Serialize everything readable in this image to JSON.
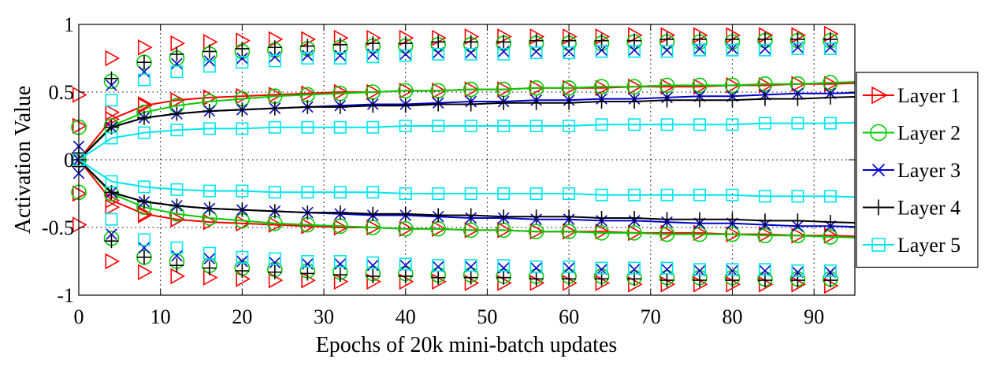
{
  "chart_data": {
    "type": "line",
    "xlabel": "Epochs of 20k mini-batch updates",
    "ylabel": "Activation Value",
    "xlim": [
      0,
      95
    ],
    "ylim": [
      -1,
      1
    ],
    "xticks": [
      0,
      10,
      20,
      30,
      40,
      50,
      60,
      70,
      80,
      90
    ],
    "yticks": [
      1,
      0.5,
      0,
      -0.5,
      -1
    ],
    "ytick_labels": [
      "1",
      "0.5",
      "0",
      "-0.5",
      "-1"
    ],
    "grid": true,
    "legend_position": "right",
    "marker_x": [
      0,
      4,
      8,
      12,
      16,
      20,
      24,
      28,
      32,
      36,
      40,
      44,
      48,
      52,
      56,
      60,
      64,
      68,
      72,
      76,
      80,
      84,
      88,
      92
    ],
    "series": [
      {
        "name": "Layer 1",
        "color": "#ff0000",
        "marker": "triangle-right",
        "mean_plus": [
          0.0,
          0.3,
          0.4,
          0.44,
          0.46,
          0.47,
          0.48,
          0.49,
          0.5,
          0.5,
          0.51,
          0.51,
          0.52,
          0.52,
          0.53,
          0.53,
          0.53,
          0.54,
          0.54,
          0.54,
          0.55,
          0.55,
          0.56,
          0.56
        ],
        "mean_minus": [
          0.0,
          -0.3,
          -0.4,
          -0.44,
          -0.46,
          -0.47,
          -0.48,
          -0.49,
          -0.5,
          -0.5,
          -0.51,
          -0.51,
          -0.52,
          -0.52,
          -0.53,
          -0.53,
          -0.53,
          -0.54,
          -0.54,
          -0.54,
          -0.55,
          -0.55,
          -0.56,
          -0.56
        ],
        "upper": [
          0.48,
          0.75,
          0.83,
          0.86,
          0.87,
          0.88,
          0.89,
          0.89,
          0.9,
          0.9,
          0.9,
          0.9,
          0.91,
          0.91,
          0.91,
          0.91,
          0.91,
          0.92,
          0.92,
          0.92,
          0.92,
          0.92,
          0.92,
          0.93
        ],
        "lower": [
          -0.48,
          -0.75,
          -0.83,
          -0.86,
          -0.87,
          -0.88,
          -0.89,
          -0.89,
          -0.9,
          -0.9,
          -0.9,
          -0.9,
          -0.91,
          -0.91,
          -0.91,
          -0.91,
          -0.91,
          -0.92,
          -0.92,
          -0.92,
          -0.92,
          -0.92,
          -0.92,
          -0.93
        ],
        "mid_plus": [
          0.25,
          0.35,
          0.41,
          0.44
        ],
        "mid_minus": [
          -0.25,
          -0.35,
          -0.41,
          -0.44
        ]
      },
      {
        "name": "Layer 2",
        "color": "#00cc00",
        "marker": "circle",
        "mean_plus": [
          0.0,
          0.25,
          0.35,
          0.4,
          0.43,
          0.45,
          0.47,
          0.48,
          0.49,
          0.5,
          0.51,
          0.51,
          0.52,
          0.52,
          0.53,
          0.53,
          0.54,
          0.54,
          0.55,
          0.55,
          0.55,
          0.56,
          0.56,
          0.57
        ],
        "mean_minus": [
          0.0,
          -0.25,
          -0.35,
          -0.4,
          -0.43,
          -0.45,
          -0.47,
          -0.48,
          -0.49,
          -0.5,
          -0.51,
          -0.51,
          -0.52,
          -0.52,
          -0.53,
          -0.53,
          -0.54,
          -0.54,
          -0.55,
          -0.55,
          -0.55,
          -0.56,
          -0.56,
          -0.57
        ],
        "upper": [
          0.24,
          0.58,
          0.72,
          0.75,
          0.78,
          0.8,
          0.81,
          0.82,
          0.83,
          0.84,
          0.84,
          0.85,
          0.85,
          0.86,
          0.86,
          0.86,
          0.86,
          0.87,
          0.87,
          0.87,
          0.87,
          0.88,
          0.88,
          0.88
        ],
        "lower": [
          -0.24,
          -0.58,
          -0.72,
          -0.75,
          -0.78,
          -0.8,
          -0.81,
          -0.82,
          -0.83,
          -0.84,
          -0.84,
          -0.85,
          -0.85,
          -0.86,
          -0.86,
          -0.86,
          -0.86,
          -0.87,
          -0.87,
          -0.87,
          -0.87,
          -0.88,
          -0.88,
          -0.88
        ]
      },
      {
        "name": "Layer 3",
        "color": "#0000cc",
        "marker": "x",
        "mean_plus": [
          0.0,
          0.24,
          0.31,
          0.34,
          0.36,
          0.37,
          0.38,
          0.39,
          0.4,
          0.41,
          0.41,
          0.42,
          0.43,
          0.43,
          0.44,
          0.44,
          0.45,
          0.45,
          0.46,
          0.47,
          0.47,
          0.48,
          0.49,
          0.49
        ],
        "mean_minus": [
          0.0,
          -0.24,
          -0.31,
          -0.34,
          -0.36,
          -0.37,
          -0.38,
          -0.39,
          -0.4,
          -0.41,
          -0.41,
          -0.42,
          -0.43,
          -0.43,
          -0.44,
          -0.44,
          -0.45,
          -0.45,
          -0.46,
          -0.47,
          -0.47,
          -0.48,
          -0.49,
          -0.49
        ],
        "upper": [
          0.1,
          0.55,
          0.65,
          0.71,
          0.73,
          0.75,
          0.76,
          0.77,
          0.77,
          0.78,
          0.78,
          0.79,
          0.79,
          0.8,
          0.8,
          0.8,
          0.81,
          0.81,
          0.81,
          0.82,
          0.82,
          0.82,
          0.83,
          0.83
        ],
        "lower": [
          -0.1,
          -0.55,
          -0.65,
          -0.71,
          -0.73,
          -0.75,
          -0.76,
          -0.77,
          -0.77,
          -0.78,
          -0.78,
          -0.79,
          -0.79,
          -0.8,
          -0.8,
          -0.8,
          -0.81,
          -0.81,
          -0.81,
          -0.82,
          -0.82,
          -0.82,
          -0.83,
          -0.83
        ]
      },
      {
        "name": "Layer 4",
        "color": "#000000",
        "marker": "plus",
        "mean_plus": [
          0.0,
          0.24,
          0.31,
          0.34,
          0.36,
          0.37,
          0.38,
          0.39,
          0.39,
          0.4,
          0.4,
          0.41,
          0.41,
          0.42,
          0.42,
          0.42,
          0.43,
          0.43,
          0.44,
          0.44,
          0.44,
          0.45,
          0.45,
          0.46
        ],
        "mean_minus": [
          0.0,
          -0.24,
          -0.31,
          -0.34,
          -0.36,
          -0.37,
          -0.38,
          -0.39,
          -0.39,
          -0.4,
          -0.4,
          -0.41,
          -0.41,
          -0.42,
          -0.42,
          -0.42,
          -0.43,
          -0.43,
          -0.44,
          -0.44,
          -0.44,
          -0.45,
          -0.45,
          -0.46
        ],
        "upper": [
          0.05,
          0.6,
          0.72,
          0.78,
          0.8,
          0.82,
          0.83,
          0.84,
          0.85,
          0.86,
          0.86,
          0.87,
          0.87,
          0.87,
          0.88,
          0.88,
          0.88,
          0.88,
          0.89,
          0.89,
          0.89,
          0.89,
          0.89,
          0.89
        ],
        "lower": [
          -0.05,
          -0.6,
          -0.72,
          -0.78,
          -0.8,
          -0.82,
          -0.83,
          -0.84,
          -0.85,
          -0.86,
          -0.86,
          -0.87,
          -0.87,
          -0.87,
          -0.88,
          -0.88,
          -0.88,
          -0.88,
          -0.89,
          -0.89,
          -0.89,
          -0.89,
          -0.89,
          -0.89
        ]
      },
      {
        "name": "Layer 5",
        "color": "#00e5ee",
        "marker": "square",
        "mean_plus": [
          0.0,
          0.16,
          0.2,
          0.22,
          0.23,
          0.23,
          0.24,
          0.24,
          0.24,
          0.24,
          0.25,
          0.25,
          0.25,
          0.25,
          0.25,
          0.25,
          0.26,
          0.26,
          0.26,
          0.26,
          0.26,
          0.27,
          0.27,
          0.27
        ],
        "mean_minus": [
          0.0,
          -0.16,
          -0.2,
          -0.22,
          -0.23,
          -0.23,
          -0.24,
          -0.24,
          -0.24,
          -0.24,
          -0.25,
          -0.25,
          -0.25,
          -0.25,
          -0.25,
          -0.25,
          -0.26,
          -0.26,
          -0.26,
          -0.26,
          -0.26,
          -0.27,
          -0.27,
          -0.27
        ],
        "upper": [
          0.0,
          0.44,
          0.59,
          0.65,
          0.69,
          0.72,
          0.73,
          0.75,
          0.75,
          0.76,
          0.77,
          0.78,
          0.78,
          0.78,
          0.79,
          0.79,
          0.8,
          0.8,
          0.8,
          0.81,
          0.81,
          0.81,
          0.82,
          0.82
        ],
        "lower": [
          0.0,
          -0.44,
          -0.59,
          -0.65,
          -0.69,
          -0.72,
          -0.73,
          -0.75,
          -0.75,
          -0.76,
          -0.77,
          -0.78,
          -0.78,
          -0.78,
          -0.79,
          -0.79,
          -0.8,
          -0.8,
          -0.8,
          -0.81,
          -0.81,
          -0.81,
          -0.82,
          -0.82
        ]
      }
    ]
  }
}
